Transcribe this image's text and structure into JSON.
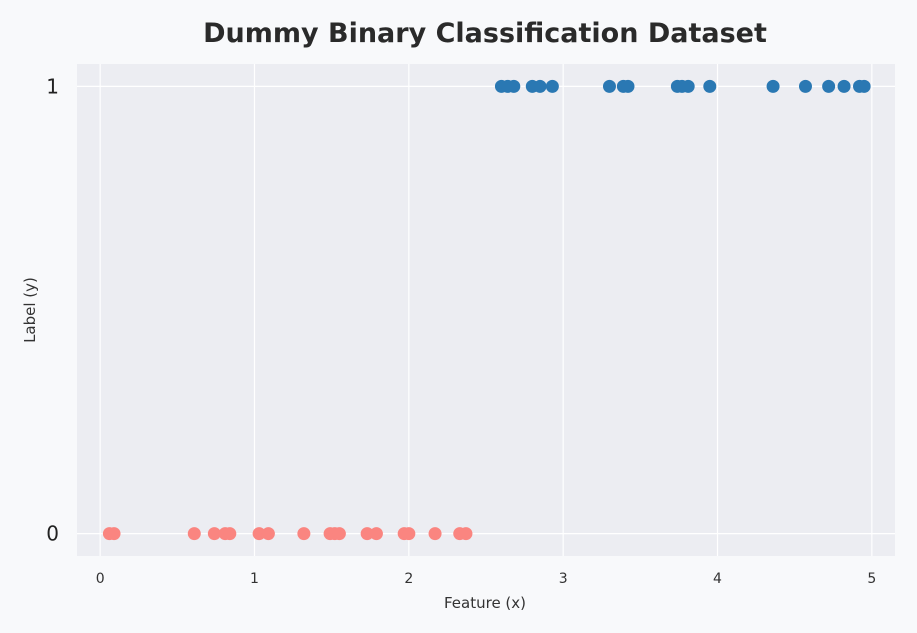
{
  "chart_data": {
    "type": "scatter",
    "title": "Dummy Binary Classification Dataset",
    "xlabel": "Feature (x)",
    "ylabel": "Label (y)",
    "xlim": [
      -0.15,
      5.15
    ],
    "ylim": [
      -0.05,
      1.05
    ],
    "x_ticks": [
      0,
      1,
      2,
      3,
      4,
      5
    ],
    "y_ticks": [
      0,
      1
    ],
    "grid": true,
    "background_color": "#ecedf2",
    "grid_color": "#ffffff",
    "series": [
      {
        "color": "#fa8580",
        "y": 0,
        "x": [
          0.06,
          0.09,
          0.61,
          0.74,
          0.81,
          0.84,
          1.03,
          1.09,
          1.32,
          1.49,
          1.52,
          1.55,
          1.73,
          1.79,
          1.97,
          2.0,
          2.17,
          2.33,
          2.37
        ]
      },
      {
        "color": "#2a78b3",
        "y": 1,
        "x": [
          2.6,
          2.64,
          2.68,
          2.8,
          2.85,
          2.93,
          3.3,
          3.39,
          3.42,
          3.74,
          3.77,
          3.81,
          3.95,
          4.36,
          4.57,
          4.72,
          4.82,
          4.92,
          4.95
        ]
      }
    ]
  }
}
